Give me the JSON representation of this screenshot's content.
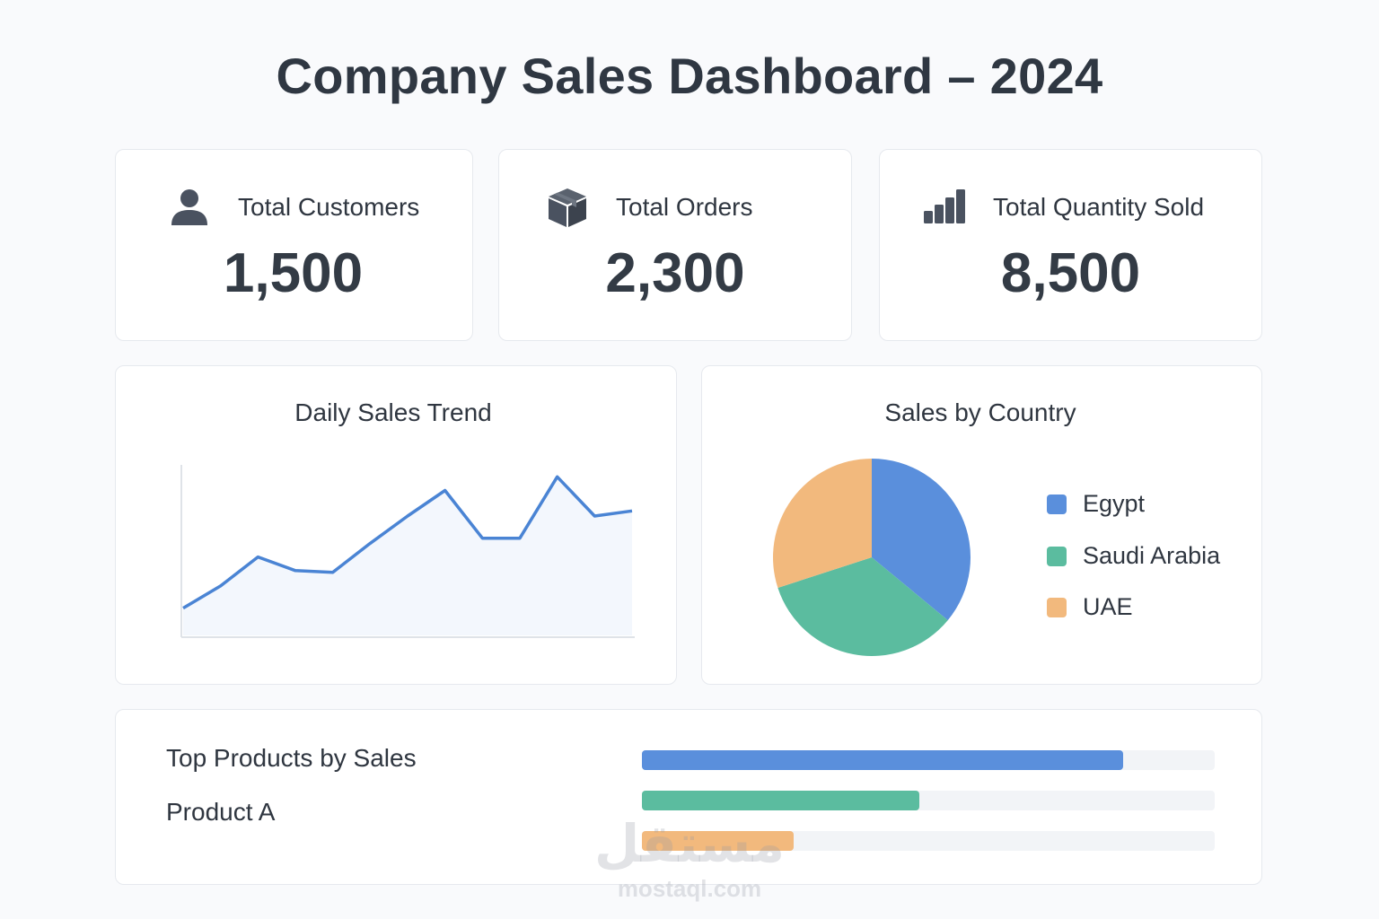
{
  "header": {
    "title": "Company Sales Dashboard – 2024"
  },
  "kpis": [
    {
      "label": "Total Customers",
      "value": "1,500",
      "icon": "user-icon"
    },
    {
      "label": "Total Orders",
      "value": "2,300",
      "icon": "box-icon"
    },
    {
      "label": "Total Quantity Sold",
      "value": "8,500",
      "icon": "bar-chart-icon"
    }
  ],
  "trend": {
    "title": "Daily Sales Trend"
  },
  "country": {
    "title": "Sales by Country",
    "legend": [
      {
        "label": "Egypt",
        "color": "#5a8fdc"
      },
      {
        "label": "Saudi Arabia",
        "color": "#5bbc9f"
      },
      {
        "label": "UAE",
        "color": "#f2b97d"
      }
    ]
  },
  "products": {
    "title": "Top Products by Sales",
    "item_label": "Product A",
    "bars": [
      {
        "value": 0.84,
        "color": "#5a8fdc"
      },
      {
        "value": 0.485,
        "color": "#5bbc9f"
      },
      {
        "value": 0.265,
        "color": "#f2b97d"
      }
    ]
  },
  "watermark": {
    "arabic": "مستقل",
    "latin": "mostaql.com"
  },
  "chart_data": [
    {
      "type": "area",
      "title": "Daily Sales Trend",
      "x": [
        1,
        2,
        3,
        4,
        5,
        6,
        7,
        8,
        9,
        10,
        11,
        12,
        13
      ],
      "values": [
        16,
        29,
        46,
        38,
        37,
        54,
        70,
        85,
        57,
        57,
        93,
        70,
        73
      ],
      "ylim": [
        0,
        100
      ],
      "grid": false,
      "color": "#4a84d4"
    },
    {
      "type": "pie",
      "title": "Sales by Country",
      "categories": [
        "Egypt",
        "Saudi Arabia",
        "UAE"
      ],
      "values": [
        36,
        34,
        30
      ],
      "colors": [
        "#5a8fdc",
        "#5bbc9f",
        "#f2b97d"
      ]
    }
  ]
}
